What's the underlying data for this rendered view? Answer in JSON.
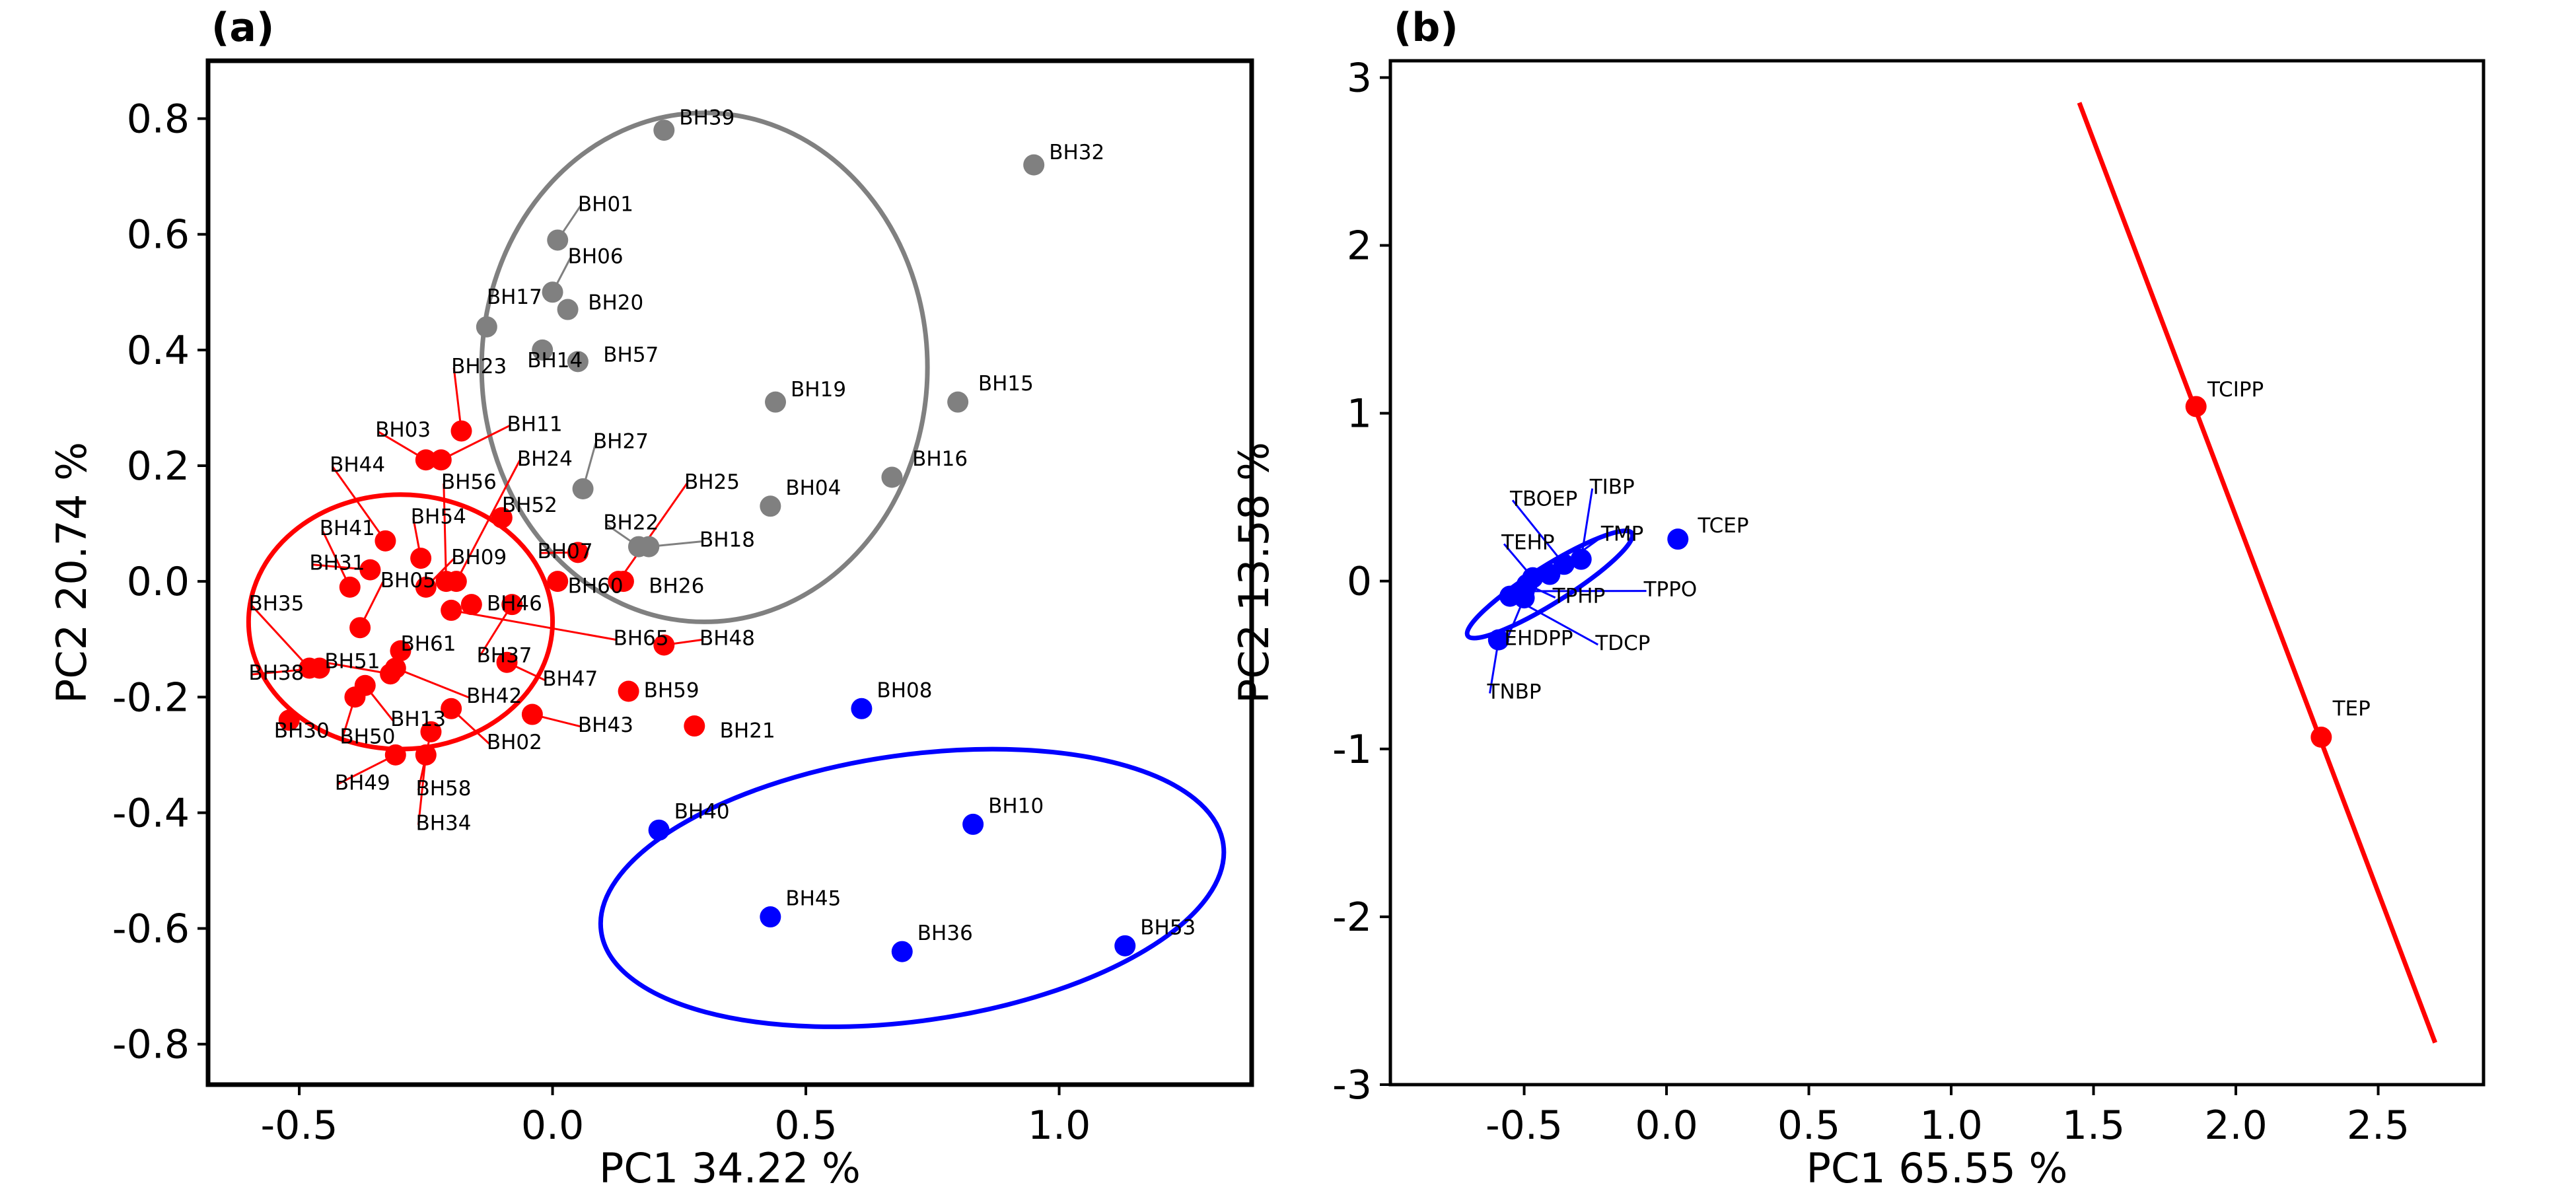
{
  "chart_data": [
    {
      "type": "scatter",
      "panel_label": "(a)",
      "xlabel": "PC1 34.22 %",
      "ylabel": "PC2 20.74 %",
      "xlim": [
        -0.68,
        1.38
      ],
      "ylim": [
        -0.87,
        0.9
      ],
      "xticks": [
        -0.5,
        0.0,
        0.5,
        1.0
      ],
      "xtick_labels": [
        "-0.5",
        "0.0",
        "0.5",
        "1.0"
      ],
      "yticks": [
        0.8,
        0.6,
        0.4,
        0.2,
        0.0,
        -0.2,
        -0.4,
        -0.6,
        -0.8
      ],
      "ytick_labels": [
        "0.8",
        "0.6",
        "0.4",
        "0.2",
        "0.0",
        "-0.2",
        "-0.4",
        "-0.6",
        "-0.8"
      ],
      "grid": false,
      "colors": {
        "gray": "#808080",
        "red": "#ff0000",
        "blue": "#0000ff"
      },
      "ellipses": [
        {
          "color": "gray",
          "cx": 0.3,
          "cy": 0.37,
          "rx": 0.44,
          "ry": 0.44,
          "angle": 0
        },
        {
          "color": "red",
          "cx": -0.3,
          "cy": -0.07,
          "rx": 0.3,
          "ry": 0.22,
          "angle": 0
        },
        {
          "color": "blue",
          "cx": 0.71,
          "cy": -0.53,
          "rx": 0.62,
          "ry": 0.23,
          "angle": -8
        }
      ],
      "points": [
        {
          "name": "BH39",
          "x": 0.22,
          "y": 0.78,
          "group": "gray",
          "lx": 0.25,
          "ly": 0.79
        },
        {
          "name": "BH32",
          "x": 0.95,
          "y": 0.72,
          "group": "gray",
          "lx": 0.98,
          "ly": 0.73
        },
        {
          "name": "BH01",
          "x": 0.01,
          "y": 0.59,
          "group": "gray",
          "lx": 0.05,
          "ly": 0.64
        },
        {
          "name": "BH06",
          "x": 0.0,
          "y": 0.5,
          "group": "gray",
          "lx": 0.03,
          "ly": 0.55
        },
        {
          "name": "BH20",
          "x": 0.03,
          "y": 0.47,
          "group": "gray",
          "lx": 0.07,
          "ly": 0.47
        },
        {
          "name": "BH17",
          "x": -0.13,
          "y": 0.44,
          "group": "gray",
          "lx": -0.13,
          "ly": 0.48
        },
        {
          "name": "BH14",
          "x": -0.02,
          "y": 0.4,
          "group": "gray",
          "lx": -0.05,
          "ly": 0.37
        },
        {
          "name": "BH57",
          "x": 0.05,
          "y": 0.38,
          "group": "gray",
          "lx": 0.1,
          "ly": 0.38
        },
        {
          "name": "BH19",
          "x": 0.44,
          "y": 0.31,
          "group": "gray",
          "lx": 0.47,
          "ly": 0.32
        },
        {
          "name": "BH15",
          "x": 0.8,
          "y": 0.31,
          "group": "gray",
          "lx": 0.84,
          "ly": 0.33
        },
        {
          "name": "BH16",
          "x": 0.67,
          "y": 0.18,
          "group": "gray",
          "lx": 0.71,
          "ly": 0.2
        },
        {
          "name": "BH27",
          "x": 0.06,
          "y": 0.16,
          "group": "gray",
          "lx": 0.08,
          "ly": 0.23
        },
        {
          "name": "BH04",
          "x": 0.43,
          "y": 0.13,
          "group": "gray",
          "lx": 0.46,
          "ly": 0.15
        },
        {
          "name": "BH22",
          "x": 0.17,
          "y": 0.06,
          "group": "gray",
          "lx": 0.1,
          "ly": 0.09
        },
        {
          "name": "BH18",
          "x": 0.19,
          "y": 0.06,
          "group": "gray",
          "lx": 0.29,
          "ly": 0.06
        },
        {
          "name": "BH25",
          "x": 0.13,
          "y": 0.0,
          "group": "red",
          "lx": 0.26,
          "ly": 0.16
        },
        {
          "name": "BH23",
          "x": -0.18,
          "y": 0.26,
          "group": "red",
          "lx": -0.2,
          "ly": 0.36
        },
        {
          "name": "BH03",
          "x": -0.25,
          "y": 0.21,
          "group": "red",
          "lx": -0.35,
          "ly": 0.25
        },
        {
          "name": "BH11",
          "x": -0.22,
          "y": 0.21,
          "group": "red",
          "lx": -0.09,
          "ly": 0.26
        },
        {
          "name": "BH24",
          "x": -0.19,
          "y": 0.0,
          "group": "red",
          "lx": -0.07,
          "ly": 0.2
        },
        {
          "name": "BH44",
          "x": -0.33,
          "y": 0.07,
          "group": "red",
          "lx": -0.44,
          "ly": 0.19
        },
        {
          "name": "BH56",
          "x": -0.21,
          "y": 0.0,
          "group": "red",
          "lx": -0.22,
          "ly": 0.16
        },
        {
          "name": "BH52",
          "x": -0.1,
          "y": 0.11,
          "group": "red",
          "lx": -0.1,
          "ly": 0.12
        },
        {
          "name": "BH54",
          "x": -0.26,
          "y": 0.04,
          "group": "red",
          "lx": -0.28,
          "ly": 0.1
        },
        {
          "name": "BH41",
          "x": -0.4,
          "y": -0.01,
          "group": "red",
          "lx": -0.46,
          "ly": 0.08
        },
        {
          "name": "BH09",
          "x": -0.25,
          "y": -0.01,
          "group": "red",
          "lx": -0.2,
          "ly": 0.03
        },
        {
          "name": "BH07",
          "x": 0.05,
          "y": 0.05,
          "group": "red",
          "lx": -0.03,
          "ly": 0.04
        },
        {
          "name": "BH31",
          "x": -0.36,
          "y": 0.02,
          "group": "red",
          "lx": -0.48,
          "ly": 0.02
        },
        {
          "name": "BH05",
          "x": -0.38,
          "y": -0.08,
          "group": "red",
          "lx": -0.34,
          "ly": -0.01
        },
        {
          "name": "BH60",
          "x": 0.01,
          "y": 0.0,
          "group": "red",
          "lx": 0.03,
          "ly": -0.02
        },
        {
          "name": "BH26",
          "x": 0.14,
          "y": 0.0,
          "group": "red",
          "lx": 0.19,
          "ly": -0.02
        },
        {
          "name": "BH46",
          "x": -0.16,
          "y": -0.04,
          "group": "red",
          "lx": -0.13,
          "ly": -0.05
        },
        {
          "name": "BH35",
          "x": -0.48,
          "y": -0.15,
          "group": "red",
          "lx": -0.6,
          "ly": -0.05
        },
        {
          "name": "BH61",
          "x": -0.3,
          "y": -0.12,
          "group": "red",
          "lx": -0.3,
          "ly": -0.12
        },
        {
          "name": "BH37",
          "x": -0.08,
          "y": -0.04,
          "group": "red",
          "lx": -0.15,
          "ly": -0.14
        },
        {
          "name": "BH65",
          "x": -0.2,
          "y": -0.05,
          "group": "red",
          "lx": 0.12,
          "ly": -0.11
        },
        {
          "name": "BH48",
          "x": 0.22,
          "y": -0.11,
          "group": "red",
          "lx": 0.29,
          "ly": -0.11
        },
        {
          "name": "BH51",
          "x": -0.32,
          "y": -0.16,
          "group": "red",
          "lx": -0.45,
          "ly": -0.15
        },
        {
          "name": "BH38",
          "x": -0.46,
          "y": -0.15,
          "group": "red",
          "lx": -0.6,
          "ly": -0.17
        },
        {
          "name": "BH47",
          "x": -0.09,
          "y": -0.14,
          "group": "red",
          "lx": -0.02,
          "ly": -0.18
        },
        {
          "name": "BH42",
          "x": -0.31,
          "y": -0.15,
          "group": "red",
          "lx": -0.17,
          "ly": -0.21
        },
        {
          "name": "BH59",
          "x": 0.15,
          "y": -0.19,
          "group": "red",
          "lx": 0.18,
          "ly": -0.2
        },
        {
          "name": "BH13",
          "x": -0.37,
          "y": -0.18,
          "group": "red",
          "lx": -0.32,
          "ly": -0.25
        },
        {
          "name": "BH43",
          "x": -0.04,
          "y": -0.23,
          "group": "red",
          "lx": 0.05,
          "ly": -0.26
        },
        {
          "name": "BH21",
          "x": 0.28,
          "y": -0.25,
          "group": "red",
          "lx": 0.33,
          "ly": -0.27
        },
        {
          "name": "BH30",
          "x": -0.52,
          "y": -0.24,
          "group": "red",
          "lx": -0.55,
          "ly": -0.27
        },
        {
          "name": "BH50",
          "x": -0.39,
          "y": -0.2,
          "group": "red",
          "lx": -0.42,
          "ly": -0.28
        },
        {
          "name": "BH02",
          "x": -0.2,
          "y": -0.22,
          "group": "red",
          "lx": -0.13,
          "ly": -0.29
        },
        {
          "name": "BH58",
          "x": -0.24,
          "y": -0.26,
          "group": "red",
          "lx": -0.27,
          "ly": -0.37
        },
        {
          "name": "BH49",
          "x": -0.31,
          "y": -0.3,
          "group": "red",
          "lx": -0.43,
          "ly": -0.36
        },
        {
          "name": "BH34",
          "x": -0.25,
          "y": -0.3,
          "group": "red",
          "lx": -0.27,
          "ly": -0.43
        },
        {
          "name": "BH08",
          "x": 0.61,
          "y": -0.22,
          "group": "blue",
          "lx": 0.64,
          "ly": -0.2
        },
        {
          "name": "BH10",
          "x": 0.83,
          "y": -0.42,
          "group": "blue",
          "lx": 0.86,
          "ly": -0.4
        },
        {
          "name": "BH40",
          "x": 0.21,
          "y": -0.43,
          "group": "blue",
          "lx": 0.24,
          "ly": -0.41
        },
        {
          "name": "BH45",
          "x": 0.43,
          "y": -0.58,
          "group": "blue",
          "lx": 0.46,
          "ly": -0.56
        },
        {
          "name": "BH36",
          "x": 0.69,
          "y": -0.64,
          "group": "blue",
          "lx": 0.72,
          "ly": -0.62
        },
        {
          "name": "BH53",
          "x": 1.13,
          "y": -0.63,
          "group": "blue",
          "lx": 1.16,
          "ly": -0.61
        }
      ]
    },
    {
      "type": "scatter",
      "panel_label": "(b)",
      "xlabel": "PC1 65.55 %",
      "ylabel": "PC2 13.58 %",
      "xlim": [
        -0.97,
        2.87
      ],
      "ylim": [
        -3.0,
        3.1
      ],
      "xticks": [
        -0.5,
        0.0,
        0.5,
        1.0,
        1.5,
        2.0,
        2.5
      ],
      "xtick_labels": [
        "-0.5",
        "0.0",
        "0.5",
        "1.0",
        "1.5",
        "2.0",
        "2.5"
      ],
      "yticks": [
        3,
        2,
        1,
        0,
        -1,
        -2,
        -3
      ],
      "ytick_labels": [
        "3",
        "2",
        "1",
        "0",
        "-1",
        "-2",
        "-3"
      ],
      "grid": false,
      "colors": {
        "red": "#ff0000",
        "blue": "#0000ff"
      },
      "ellipses": [
        {
          "color": "blue",
          "cx": -0.41,
          "cy": -0.02,
          "rx": 0.34,
          "ry": 0.11,
          "angle": -32
        }
      ],
      "lines": [
        {
          "color": "red",
          "x1": 1.45,
          "y1": 2.85,
          "x2": 2.7,
          "y2": -2.75
        }
      ],
      "points": [
        {
          "name": "TCIPP",
          "x": 1.86,
          "y": 1.04,
          "group": "red",
          "lx": 1.9,
          "ly": 1.1
        },
        {
          "name": "TEP",
          "x": 2.3,
          "y": -0.93,
          "group": "red",
          "lx": 2.34,
          "ly": -0.8
        },
        {
          "name": "TCEP",
          "x": 0.04,
          "y": 0.25,
          "group": "blue",
          "lx": 0.11,
          "ly": 0.29
        },
        {
          "name": "TIBP",
          "x": -0.3,
          "y": 0.13,
          "group": "blue",
          "lx": -0.27,
          "ly": 0.52
        },
        {
          "name": "TBOEP",
          "x": -0.36,
          "y": 0.1,
          "group": "blue",
          "lx": -0.55,
          "ly": 0.45
        },
        {
          "name": "TMP",
          "x": -0.41,
          "y": 0.04,
          "group": "blue",
          "lx": -0.23,
          "ly": 0.24
        },
        {
          "name": "TEHP",
          "x": -0.47,
          "y": 0.02,
          "group": "blue",
          "lx": -0.58,
          "ly": 0.19
        },
        {
          "name": "TPHP",
          "x": -0.49,
          "y": -0.02,
          "group": "blue",
          "lx": -0.4,
          "ly": -0.13
        },
        {
          "name": "TPPO",
          "x": -0.5,
          "y": -0.06,
          "group": "blue",
          "lx": -0.08,
          "ly": -0.09
        },
        {
          "name": "EHDPP",
          "x": -0.5,
          "y": -0.1,
          "group": "blue",
          "lx": -0.57,
          "ly": -0.38
        },
        {
          "name": "TDCP",
          "x": -0.55,
          "y": -0.09,
          "group": "blue",
          "lx": -0.25,
          "ly": -0.41
        },
        {
          "name": "TNBP",
          "x": -0.59,
          "y": -0.35,
          "group": "blue",
          "lx": -0.63,
          "ly": -0.7
        }
      ]
    }
  ]
}
